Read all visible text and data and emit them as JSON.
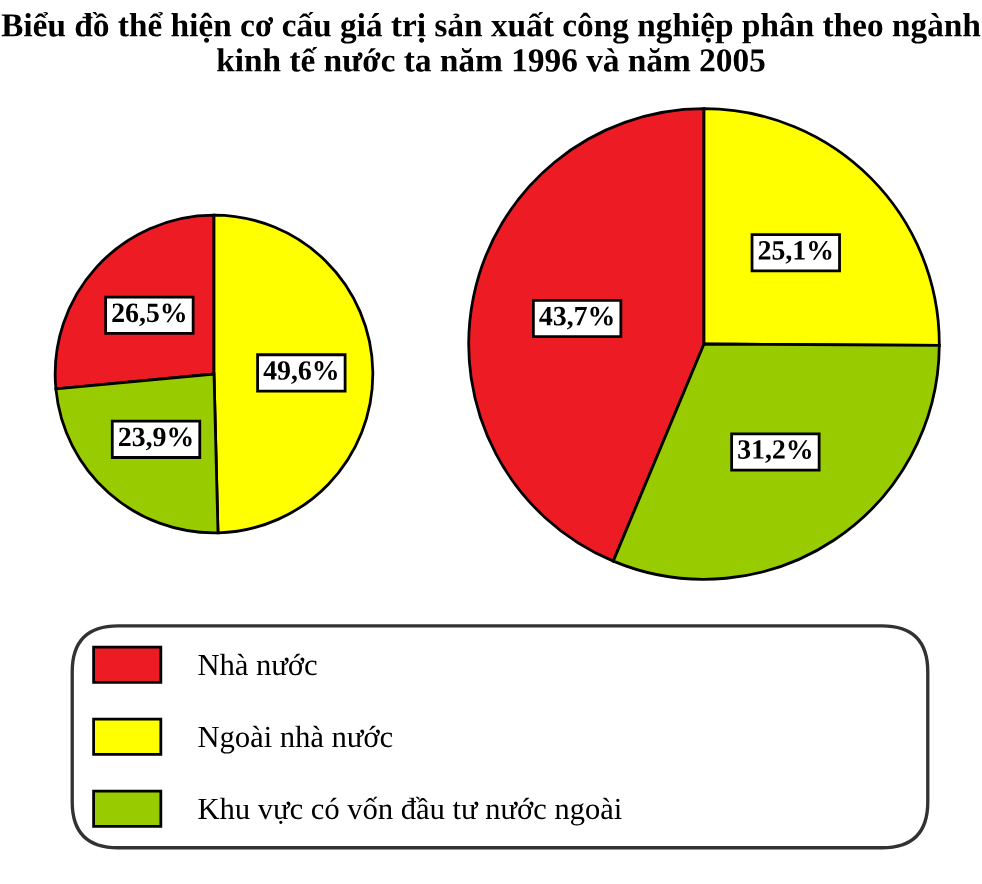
{
  "chart_data": [
    {
      "type": "pie",
      "title": "Biểu đồ thể hiện cơ cấu giá trị sản xuất công nghiệp phân theo ngành kinh tế nước ta năm 1996 và năm 2005",
      "categories": [
        "Nhà nước",
        "Ngoài nhà nước",
        "Khu vực có vốn đầu tư nước ngoài"
      ],
      "values": [
        26.5,
        49.6,
        23.9
      ],
      "value_labels": [
        "26,5%",
        "49,6%",
        "23,9%"
      ],
      "colors": [
        "#ed1c24",
        "#ffff00",
        "#99cc00"
      ],
      "legend": "bottom"
    },
    {
      "type": "pie",
      "categories": [
        null,
        null,
        null
      ],
      "values": [
        43.7,
        25.1,
        31.2
      ],
      "value_labels": [
        "43,7%",
        "25,1%",
        "31,2%"
      ],
      "colors": [
        "#ed1c24",
        "#ffff00",
        "#99cc00"
      ]
    }
  ]
}
